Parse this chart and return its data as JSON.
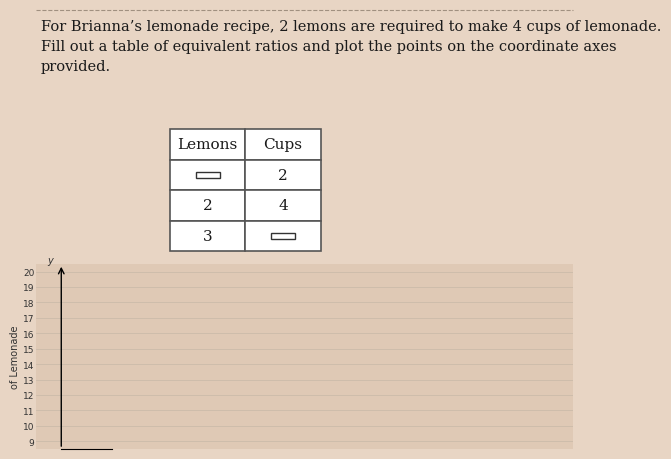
{
  "background_color": "#e8d5c4",
  "title_text": "For Brianna’s lemonade recipe, 2 lemons are required to make 4 cups of lemonade.\nFill out a table of equivalent ratios and plot the points on the coordinate axes\nprovided.",
  "title_fontsize": 10.5,
  "table_headers": [
    "Lemons",
    "Cups"
  ],
  "table_rows": [
    [
      "square",
      "2"
    ],
    [
      "2",
      "4"
    ],
    [
      "3",
      "square"
    ]
  ],
  "table_font_size": 11,
  "axis_ylabel": "of Lemonade",
  "y_min": 9,
  "y_max": 20,
  "y_ticks": [
    9,
    10,
    11,
    12,
    13,
    14,
    15,
    16,
    17,
    18,
    19,
    20
  ],
  "grid_color": "#c8b8a8",
  "plot_area_color": "#dfc9b5",
  "dashed_border_color": "#a09080",
  "cell_border_color": "#555555",
  "text_color": "#1a1a1a"
}
